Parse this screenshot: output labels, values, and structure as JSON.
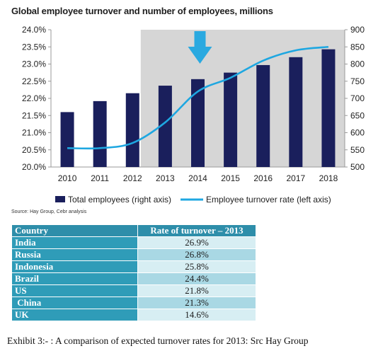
{
  "chart_data": {
    "type": "bar",
    "title": "Global employee turnover and number of employees, millions",
    "categories": [
      "2010",
      "2011",
      "2012",
      "2013",
      "2014",
      "2015",
      "2016",
      "2017",
      "2018"
    ],
    "series": [
      {
        "name": "Total employees (right axis)",
        "type": "bar",
        "axis": "right",
        "values": [
          660,
          692,
          715,
          737,
          756,
          775,
          797,
          820,
          843
        ]
      },
      {
        "name": "Employee turnover rate (left axis)",
        "type": "line",
        "axis": "left",
        "values": [
          20.55,
          20.55,
          20.7,
          21.3,
          22.2,
          22.6,
          23.1,
          23.4,
          23.5
        ]
      }
    ],
    "left_axis": {
      "ylim": [
        20.0,
        24.0
      ],
      "ticks": [
        "20.0%",
        "20.5%",
        "21.0%",
        "21.5%",
        "22.0%",
        "22.5%",
        "23.0%",
        "23.5%",
        "24.0%"
      ]
    },
    "right_axis": {
      "ylim": [
        500,
        900
      ],
      "ticks": [
        "500",
        "550",
        "600",
        "650",
        "700",
        "750",
        "800",
        "850",
        "900"
      ]
    },
    "shaded_from": "2013",
    "arrow_at": "2014",
    "legend": {
      "placement": "bottom"
    },
    "grid": false,
    "colors": {
      "bar": "#1a1f5c",
      "line": "#1ea7e1",
      "shade": "#d6d6d6",
      "arrow": "#2aa9e0"
    }
  },
  "source": "Source: Hay Group, Cebr analysis",
  "table": {
    "headers": [
      "Country",
      "Rate of turnover – 2013"
    ],
    "rows": [
      {
        "country": "India",
        "rate": "26.9%"
      },
      {
        "country": "Russia",
        "rate": "26.8%"
      },
      {
        "country": "Indonesia",
        "rate": "25.8%"
      },
      {
        "country": "Brazil",
        "rate": "24.4%"
      },
      {
        "country": "US",
        "rate": "21.8%"
      },
      {
        "country": " China",
        "rate": "21.3%"
      },
      {
        "country": "UK",
        "rate": "14.6%"
      }
    ]
  },
  "caption": "Exhibit 3:- : A comparison of expected turnover rates for 2013: Src Hay Group"
}
